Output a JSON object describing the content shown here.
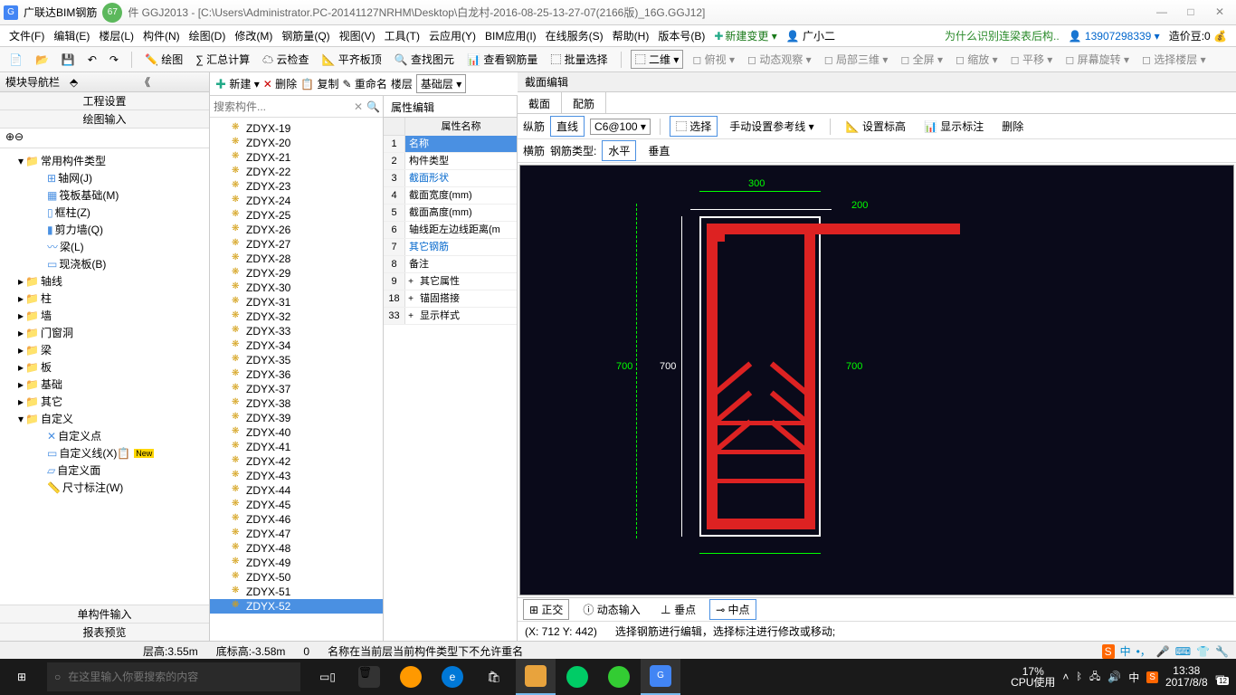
{
  "titlebar": {
    "badge": "67",
    "app_name": "广联达BIM钢筋",
    "suffix": "件 GGJ2013 - [C:\\Users\\Administrator.PC-20141127NRHM\\Desktop\\白龙村-2016-08-25-13-27-07(2166版)_16G.GGJ12]"
  },
  "menubar": {
    "items": [
      "文件(F)",
      "编辑(E)",
      "楼层(L)",
      "构件(N)",
      "绘图(D)",
      "修改(M)",
      "钢筋量(Q)",
      "视图(V)",
      "工具(T)",
      "云应用(Y)",
      "BIM应用(I)",
      "在线服务(S)",
      "帮助(H)",
      "版本号(B)"
    ],
    "new_change": "新建变更",
    "user_name": "广小二",
    "green_link": "为什么识别连梁表后构..",
    "phone": "13907298339",
    "coins_label": "造价豆:0"
  },
  "toolbar1": {
    "items": [
      "绘图",
      "汇总计算",
      "云检查",
      "平齐板顶",
      "查找图元",
      "查看钢筋量",
      "批量选择"
    ],
    "view2d": "二维",
    "items2": [
      "俯视",
      "动态观察",
      "局部三维",
      "全屏",
      "缩放",
      "平移",
      "屏幕旋转",
      "选择楼层"
    ]
  },
  "toolbar2": {
    "new": "新建",
    "delete": "删除",
    "copy": "复制",
    "rename": "重命名",
    "floor_label": "楼层",
    "floor_value": "基础层"
  },
  "nav": {
    "title": "模块导航栏",
    "section1": "工程设置",
    "section2": "绘图输入",
    "tree": {
      "root": "常用构件类型",
      "root_children": [
        "轴网(J)",
        "筏板基础(M)",
        "框柱(Z)",
        "剪力墙(Q)",
        "梁(L)",
        "现浇板(B)"
      ],
      "cats": [
        "轴线",
        "柱",
        "墙",
        "门窗洞",
        "梁",
        "板",
        "基础",
        "其它"
      ],
      "custom": "自定义",
      "custom_children": [
        "自定义点",
        "自定义线(X)",
        "自定义面",
        "尺寸标注(W)"
      ],
      "new_badge": "New"
    },
    "bottom1": "单构件输入",
    "bottom2": "报表预览"
  },
  "items": {
    "search_placeholder": "搜索构件...",
    "prefix": "ZDYX-",
    "start": 19,
    "end": 52,
    "selected": 52
  },
  "props": {
    "tab": "属性编辑",
    "header": "属性名称",
    "rows": [
      {
        "n": "1",
        "name": "名称",
        "sel": true
      },
      {
        "n": "2",
        "name": "构件类型"
      },
      {
        "n": "3",
        "name": "截面形状",
        "link": true
      },
      {
        "n": "4",
        "name": "截面宽度(mm)"
      },
      {
        "n": "5",
        "name": "截面高度(mm)"
      },
      {
        "n": "6",
        "name": "轴线距左边线距离(m"
      },
      {
        "n": "7",
        "name": "其它钢筋",
        "link": true
      },
      {
        "n": "8",
        "name": "备注"
      },
      {
        "n": "9",
        "name": "其它属性",
        "exp": "+"
      },
      {
        "n": "18",
        "name": "锚固搭接",
        "exp": "+"
      },
      {
        "n": "33",
        "name": "显示样式",
        "exp": "+"
      }
    ]
  },
  "editor": {
    "title": "截面编辑",
    "tabs": [
      "截面",
      "配筋"
    ],
    "active_tab": 1,
    "tb1": {
      "longitudinal": "纵筋",
      "line": "直线",
      "spec": "C6@100",
      "select": "选择",
      "manual": "手动设置参考线",
      "set_elev": "设置标高",
      "show_anno": "显示标注",
      "delete": "删除"
    },
    "tb2": {
      "transverse": "横筋",
      "type_label": "钢筋类型:",
      "horizontal": "水平",
      "vertical": "垂直"
    },
    "dims": {
      "width": "300",
      "ext": "200",
      "height_l": "700",
      "height_l2": "700",
      "height_r": "700"
    },
    "colors": {
      "bg": "#0a0a1a",
      "rebar": "#d22222",
      "dim": "#00ff00",
      "section": "#ffffff"
    },
    "bottom_tb": {
      "ortho": "正交",
      "dynamic": "动态输入",
      "perp": "垂点",
      "mid": "中点"
    },
    "status": {
      "coords": "(X: 712 Y: 442)",
      "hint": "选择钢筋进行编辑，选择标注进行修改或移动;"
    }
  },
  "statusbar": {
    "floor_h": "层高:3.55m",
    "bottom_h": "底标高:-3.58m",
    "zero": "0",
    "msg": "名称在当前层当前构件类型下不允许重名"
  },
  "taskbar": {
    "search_placeholder": "在这里输入你要搜索的内容",
    "cpu": "17%",
    "cpu_label": "CPU使用",
    "ime": "中",
    "time": "13:38",
    "date": "2017/8/8",
    "notif": "12"
  }
}
